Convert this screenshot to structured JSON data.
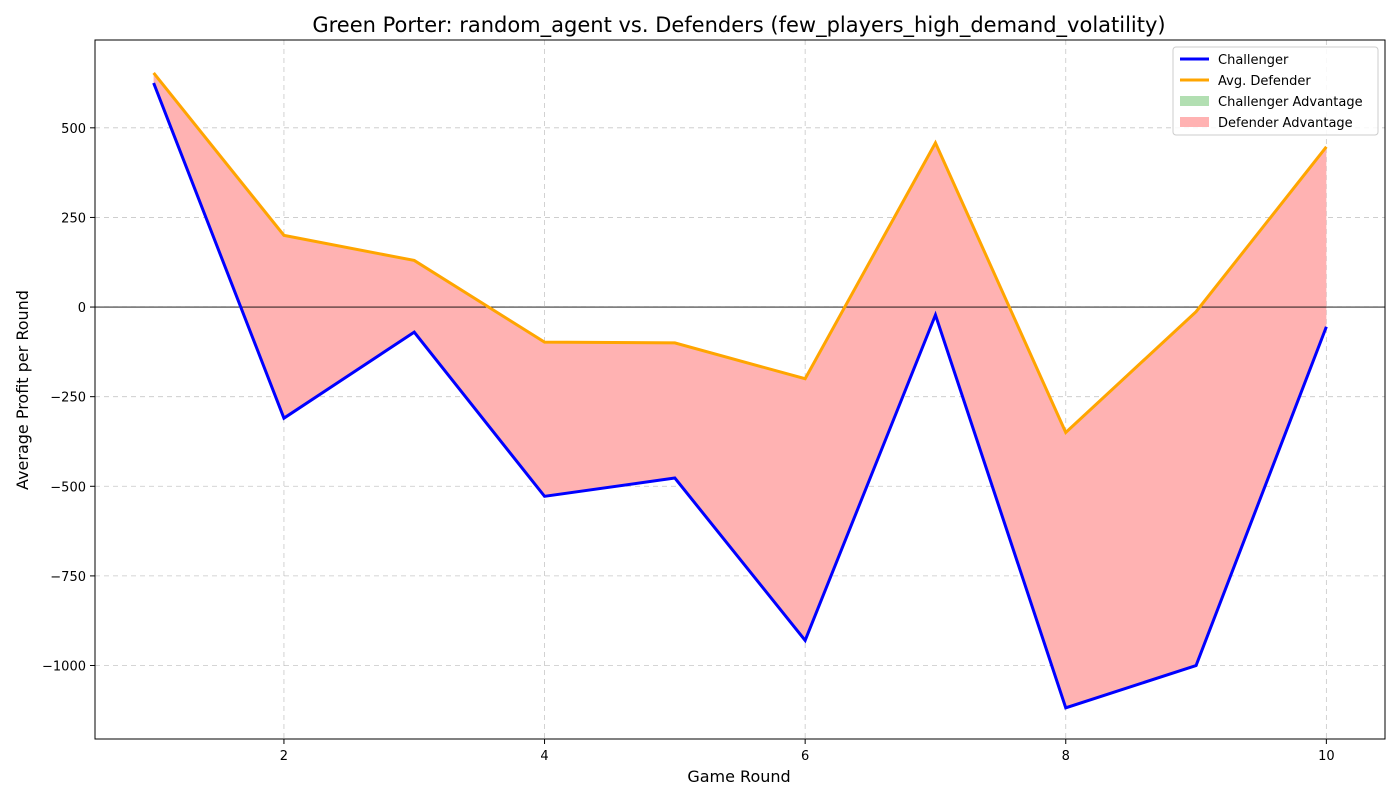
{
  "chart_data": {
    "type": "line",
    "title": "Green Porter: random_agent vs. Defenders (few_players_high_demand_volatility)",
    "xlabel": "Game Round",
    "ylabel": "Average Profit per Round",
    "x": [
      1,
      2,
      3,
      4,
      5,
      6,
      7,
      8,
      9,
      10
    ],
    "xlim": [
      0.55,
      10.45
    ],
    "ylim": [
      -1205,
      745
    ],
    "xticks": [
      2,
      4,
      6,
      8,
      10
    ],
    "yticks": [
      -1000,
      -750,
      -500,
      -250,
      0,
      250,
      500
    ],
    "ytick_labels": [
      "−1000",
      "−750",
      "−500",
      "−250",
      "0",
      "250",
      "500"
    ],
    "grid": true,
    "legend_position": "top-right",
    "series": [
      {
        "name": "Challenger",
        "color": "#0000ff",
        "values": [
          625,
          -310,
          -70,
          -528,
          -477,
          -930,
          -22,
          -1118,
          -1000,
          -55
        ]
      },
      {
        "name": "Avg. Defender",
        "color": "#ffa500",
        "values": [
          653,
          200,
          130,
          -98,
          -100,
          -200,
          458,
          -350,
          -13,
          447
        ]
      }
    ],
    "fills": [
      {
        "name": "Challenger Advantage",
        "color": "#b2dfb2"
      },
      {
        "name": "Defender Advantage",
        "color": "#ffb2b2"
      }
    ]
  }
}
